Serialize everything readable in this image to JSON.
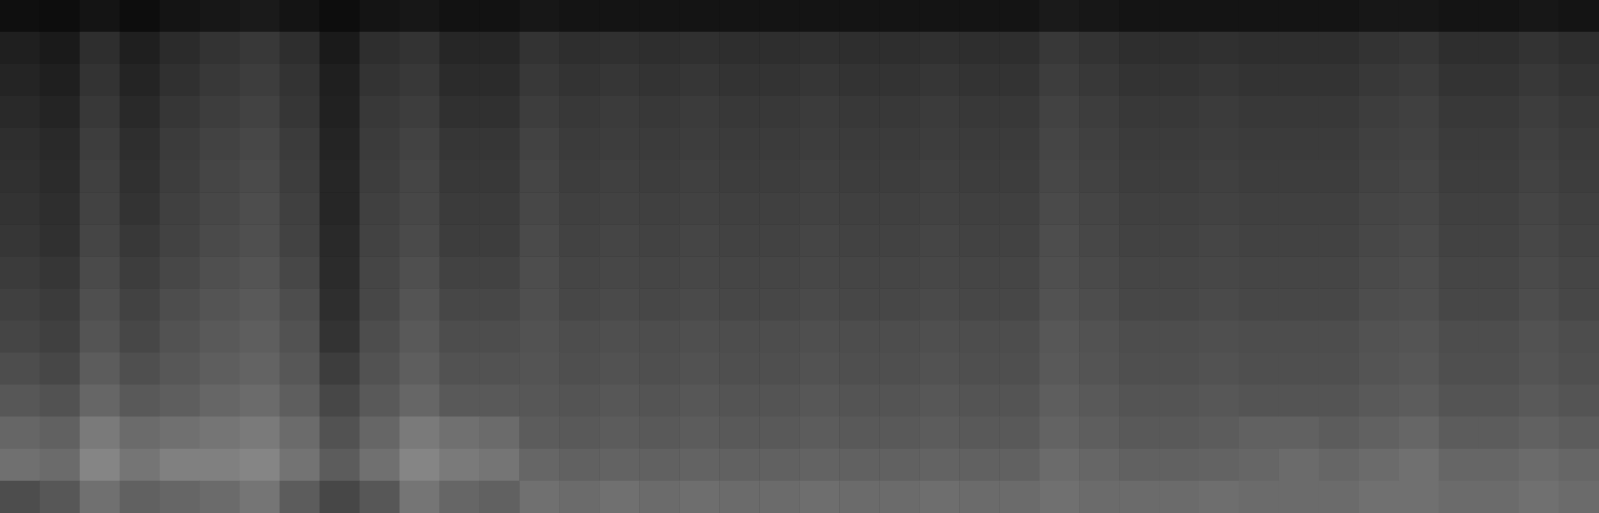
{
  "chart_data": {
    "type": "heatmap",
    "tick_labels": false,
    "grid": false,
    "color_range": [
      0,
      100
    ],
    "cells": [
      [
        6,
        5,
        8,
        5,
        8,
        9,
        10,
        8,
        5,
        8,
        9,
        7,
        7,
        9,
        8,
        8,
        8,
        8,
        8,
        8,
        8,
        8,
        8,
        8,
        8,
        8,
        10,
        9,
        8,
        8,
        8,
        8,
        8,
        8,
        9,
        9,
        8,
        8,
        9,
        8
      ],
      [
        12,
        10,
        18,
        12,
        17,
        20,
        22,
        18,
        10,
        18,
        20,
        15,
        15,
        20,
        18,
        19,
        18,
        19,
        18,
        18,
        19,
        18,
        18,
        19,
        18,
        18,
        22,
        20,
        18,
        18,
        19,
        18,
        18,
        18,
        20,
        21,
        18,
        18,
        20,
        18
      ],
      [
        14,
        12,
        20,
        14,
        19,
        22,
        24,
        20,
        12,
        20,
        22,
        17,
        17,
        22,
        20,
        21,
        20,
        21,
        20,
        20,
        21,
        20,
        20,
        21,
        20,
        20,
        24,
        22,
        20,
        20,
        21,
        20,
        20,
        20,
        22,
        23,
        20,
        20,
        22,
        20
      ],
      [
        16,
        14,
        22,
        16,
        21,
        24,
        26,
        21,
        13,
        22,
        24,
        19,
        19,
        24,
        22,
        23,
        22,
        23,
        22,
        22,
        23,
        22,
        22,
        23,
        22,
        22,
        26,
        24,
        22,
        22,
        23,
        22,
        22,
        22,
        24,
        25,
        22,
        22,
        24,
        22
      ],
      [
        18,
        16,
        24,
        18,
        23,
        26,
        28,
        23,
        14,
        23,
        26,
        21,
        21,
        26,
        23,
        24,
        23,
        24,
        23,
        23,
        24,
        23,
        23,
        24,
        23,
        23,
        27,
        25,
        23,
        23,
        24,
        23,
        23,
        23,
        25,
        26,
        23,
        23,
        25,
        23
      ],
      [
        19,
        17,
        25,
        19,
        24,
        27,
        29,
        24,
        15,
        24,
        27,
        22,
        22,
        27,
        24,
        25,
        24,
        25,
        24,
        24,
        25,
        24,
        24,
        25,
        24,
        24,
        28,
        26,
        24,
        24,
        25,
        24,
        24,
        24,
        26,
        27,
        24,
        24,
        26,
        24
      ],
      [
        20,
        18,
        26,
        20,
        25,
        28,
        30,
        25,
        15,
        25,
        28,
        23,
        23,
        28,
        25,
        26,
        25,
        26,
        25,
        25,
        26,
        25,
        25,
        26,
        25,
        25,
        29,
        27,
        25,
        25,
        26,
        25,
        25,
        25,
        27,
        28,
        25,
        25,
        27,
        25
      ],
      [
        21,
        19,
        27,
        22,
        26,
        29,
        31,
        26,
        16,
        26,
        29,
        24,
        24,
        29,
        26,
        27,
        26,
        27,
        26,
        26,
        27,
        26,
        26,
        27,
        26,
        26,
        30,
        28,
        26,
        26,
        27,
        26,
        26,
        26,
        28,
        29,
        26,
        26,
        28,
        26
      ],
      [
        23,
        21,
        29,
        24,
        28,
        31,
        33,
        28,
        17,
        27,
        31,
        26,
        26,
        30,
        27,
        28,
        27,
        28,
        27,
        27,
        28,
        27,
        27,
        28,
        27,
        27,
        31,
        29,
        27,
        27,
        28,
        27,
        27,
        27,
        29,
        30,
        27,
        27,
        29,
        27
      ],
      [
        25,
        23,
        31,
        26,
        30,
        33,
        35,
        30,
        18,
        28,
        33,
        28,
        28,
        31,
        28,
        29,
        28,
        29,
        28,
        28,
        29,
        28,
        28,
        29,
        28,
        28,
        32,
        30,
        28,
        28,
        29,
        28,
        28,
        28,
        30,
        31,
        28,
        28,
        30,
        28
      ],
      [
        27,
        25,
        33,
        28,
        32,
        35,
        37,
        32,
        20,
        30,
        35,
        30,
        30,
        32,
        30,
        31,
        30,
        31,
        30,
        30,
        31,
        30,
        30,
        31,
        30,
        30,
        34,
        32,
        30,
        30,
        31,
        30,
        30,
        30,
        32,
        33,
        30,
        30,
        32,
        30
      ],
      [
        30,
        28,
        36,
        31,
        34,
        37,
        39,
        34,
        24,
        32,
        37,
        32,
        32,
        33,
        31,
        32,
        31,
        32,
        31,
        31,
        32,
        31,
        31,
        32,
        31,
        31,
        35,
        33,
        31,
        31,
        32,
        31,
        31,
        31,
        33,
        34,
        31,
        31,
        33,
        31
      ],
      [
        34,
        32,
        40,
        35,
        37,
        40,
        42,
        37,
        28,
        35,
        40,
        35,
        35,
        34,
        33,
        34,
        33,
        34,
        33,
        33,
        34,
        33,
        33,
        34,
        33,
        33,
        37,
        35,
        33,
        33,
        34,
        33,
        33,
        33,
        35,
        36,
        33,
        33,
        35,
        33
      ],
      [
        40,
        38,
        48,
        42,
        44,
        46,
        48,
        42,
        32,
        40,
        48,
        44,
        42,
        36,
        35,
        36,
        35,
        36,
        35,
        35,
        36,
        35,
        35,
        36,
        35,
        35,
        39,
        37,
        35,
        35,
        36,
        38,
        38,
        36,
        38,
        40,
        36,
        36,
        38,
        36
      ],
      [
        44,
        42,
        52,
        46,
        50,
        50,
        52,
        45,
        36,
        44,
        52,
        48,
        46,
        40,
        38,
        39,
        38,
        39,
        38,
        38,
        39,
        38,
        38,
        39,
        38,
        38,
        42,
        40,
        38,
        38,
        39,
        40,
        42,
        40,
        42,
        44,
        40,
        40,
        42,
        40
      ],
      [
        30,
        34,
        44,
        38,
        40,
        42,
        46,
        36,
        28,
        34,
        46,
        40,
        38,
        44,
        42,
        44,
        42,
        43,
        42,
        42,
        43,
        42,
        42,
        43,
        42,
        42,
        44,
        42,
        42,
        42,
        43,
        42,
        42,
        42,
        44,
        44,
        42,
        42,
        44,
        42
      ]
    ]
  }
}
